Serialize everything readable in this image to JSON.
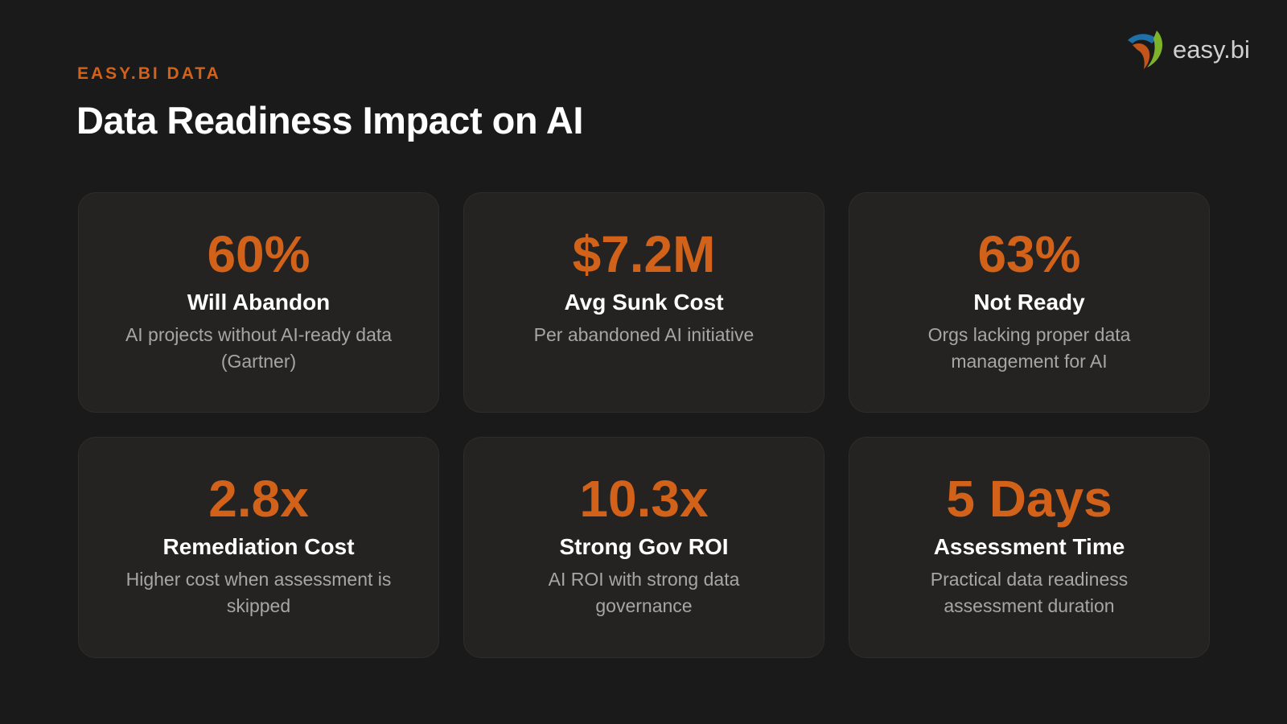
{
  "logo": {
    "text": "easy.bi"
  },
  "header": {
    "eyebrow": "EASY.BI DATA",
    "title": "Data Readiness Impact on AI"
  },
  "cards": [
    {
      "value": "60%",
      "label": "Will Abandon",
      "description": "AI projects without AI-ready data (Gartner)"
    },
    {
      "value": "$7.2M",
      "label": "Avg Sunk Cost",
      "description": "Per abandoned AI initiative"
    },
    {
      "value": "63%",
      "label": "Not Ready",
      "description": "Orgs lacking proper data management for AI"
    },
    {
      "value": "2.8x",
      "label": "Remediation Cost",
      "description": "Higher cost when assessment is skipped"
    },
    {
      "value": "10.3x",
      "label": "Strong Gov ROI",
      "description": "AI ROI with strong data governance"
    },
    {
      "value": "5 Days",
      "label": "Assessment Time",
      "description": "Practical data readiness assessment duration"
    }
  ]
}
